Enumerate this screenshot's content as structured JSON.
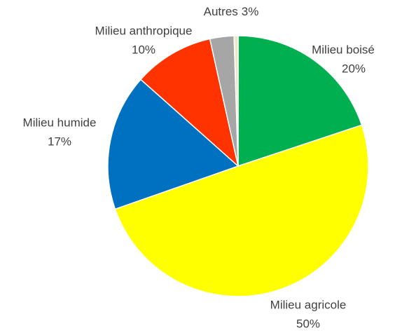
{
  "chart_data": {
    "type": "pie",
    "categories": [
      "Milieu boisé",
      "Milieu agricole",
      "Milieu humide",
      "Milieu anthropique",
      "Autres",
      null
    ],
    "values": [
      20,
      50,
      17,
      10,
      3,
      0.5
    ],
    "value_labels": [
      "20%",
      "50%",
      "17%",
      "10%",
      "3%",
      null
    ],
    "colors": [
      "#00b050",
      "#ffff00",
      "#0070c0",
      "#ff3300",
      "#a6a6a6",
      "#f2e6c8"
    ]
  }
}
